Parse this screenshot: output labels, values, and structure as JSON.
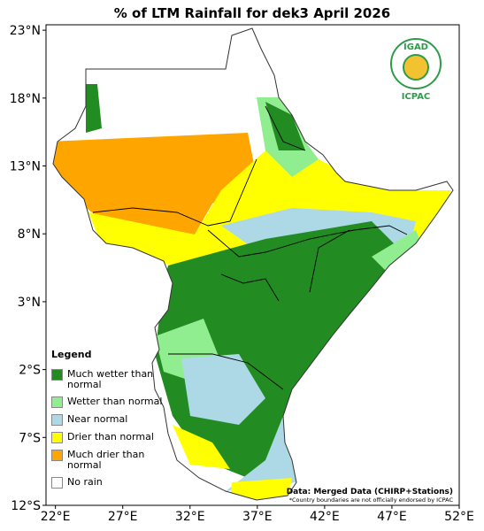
{
  "map": {
    "title": "% of LTM Rainfall for dek3 April 2026",
    "xlim": [
      21.3,
      52
    ],
    "ylim": [
      -12,
      23.4
    ],
    "xticks": [
      {
        "value": 22,
        "label": "22°E"
      },
      {
        "value": 27,
        "label": "27°E"
      },
      {
        "value": 32,
        "label": "32°E"
      },
      {
        "value": 37,
        "label": "37°E"
      },
      {
        "value": 42,
        "label": "42°E"
      },
      {
        "value": 47,
        "label": "47°E"
      },
      {
        "value": 52,
        "label": "52°E"
      }
    ],
    "yticks": [
      {
        "value": 23,
        "label": "23°N"
      },
      {
        "value": 18,
        "label": "18°N"
      },
      {
        "value": 13,
        "label": "13°N"
      },
      {
        "value": 8,
        "label": "8°N"
      },
      {
        "value": 3,
        "label": "3°N"
      },
      {
        "value": -2,
        "label": "2°S"
      },
      {
        "value": -7,
        "label": "7°S"
      },
      {
        "value": -12,
        "label": "12°S"
      }
    ],
    "legend": {
      "title": "Legend",
      "items": [
        {
          "label": "Much wetter than normal",
          "color": "#228b22"
        },
        {
          "label": "Wetter than normal",
          "color": "#90ee90"
        },
        {
          "label": "Near normal",
          "color": "#add8e6"
        },
        {
          "label": "Drier than normal",
          "color": "#ffff00"
        },
        {
          "label": "Much drier than normal",
          "color": "#ffa500"
        },
        {
          "label": "No rain",
          "color": "#ffffff"
        }
      ]
    },
    "credit": "Data: Merged Data (CHIRP+Stations)",
    "note": "*Country boundaries are not officially endorsed by ICPAC",
    "logo": {
      "name": "IGAD",
      "org": "ICPAC"
    }
  }
}
